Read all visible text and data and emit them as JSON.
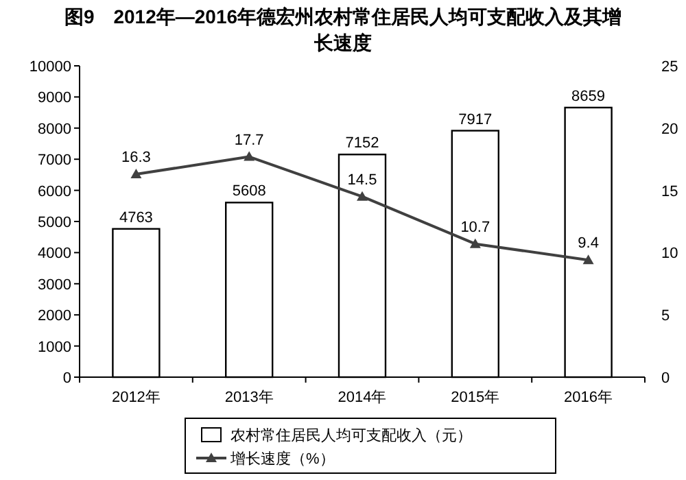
{
  "chart_data": {
    "type": "bar",
    "title": "图9　2012年—2016年德宏州农村常住居民人均可支配收入及其增长速度",
    "categories": [
      "2012年",
      "2013年",
      "2014年",
      "2015年",
      "2016年"
    ],
    "series": [
      {
        "name": "农村常住居民人均可支配收入（元）",
        "color": "#ffffff",
        "values": [
          4763,
          5608,
          7152,
          7917,
          8659
        ]
      },
      {
        "name": "增长速度（%）",
        "type": "line",
        "axis": "y2",
        "color": "#404040",
        "marker": "triangle",
        "values": [
          16.3,
          17.7,
          14.5,
          10.7,
          9.4
        ]
      }
    ],
    "data_labels": true,
    "legend": "bottom",
    "ylim": [
      0,
      10000
    ],
    "yticks": [
      0,
      1000,
      2000,
      3000,
      4000,
      5000,
      6000,
      7000,
      8000,
      9000,
      10000
    ],
    "y2lim": [
      0,
      25
    ],
    "y2ticks": [
      0,
      5,
      10,
      15,
      20,
      25
    ]
  }
}
